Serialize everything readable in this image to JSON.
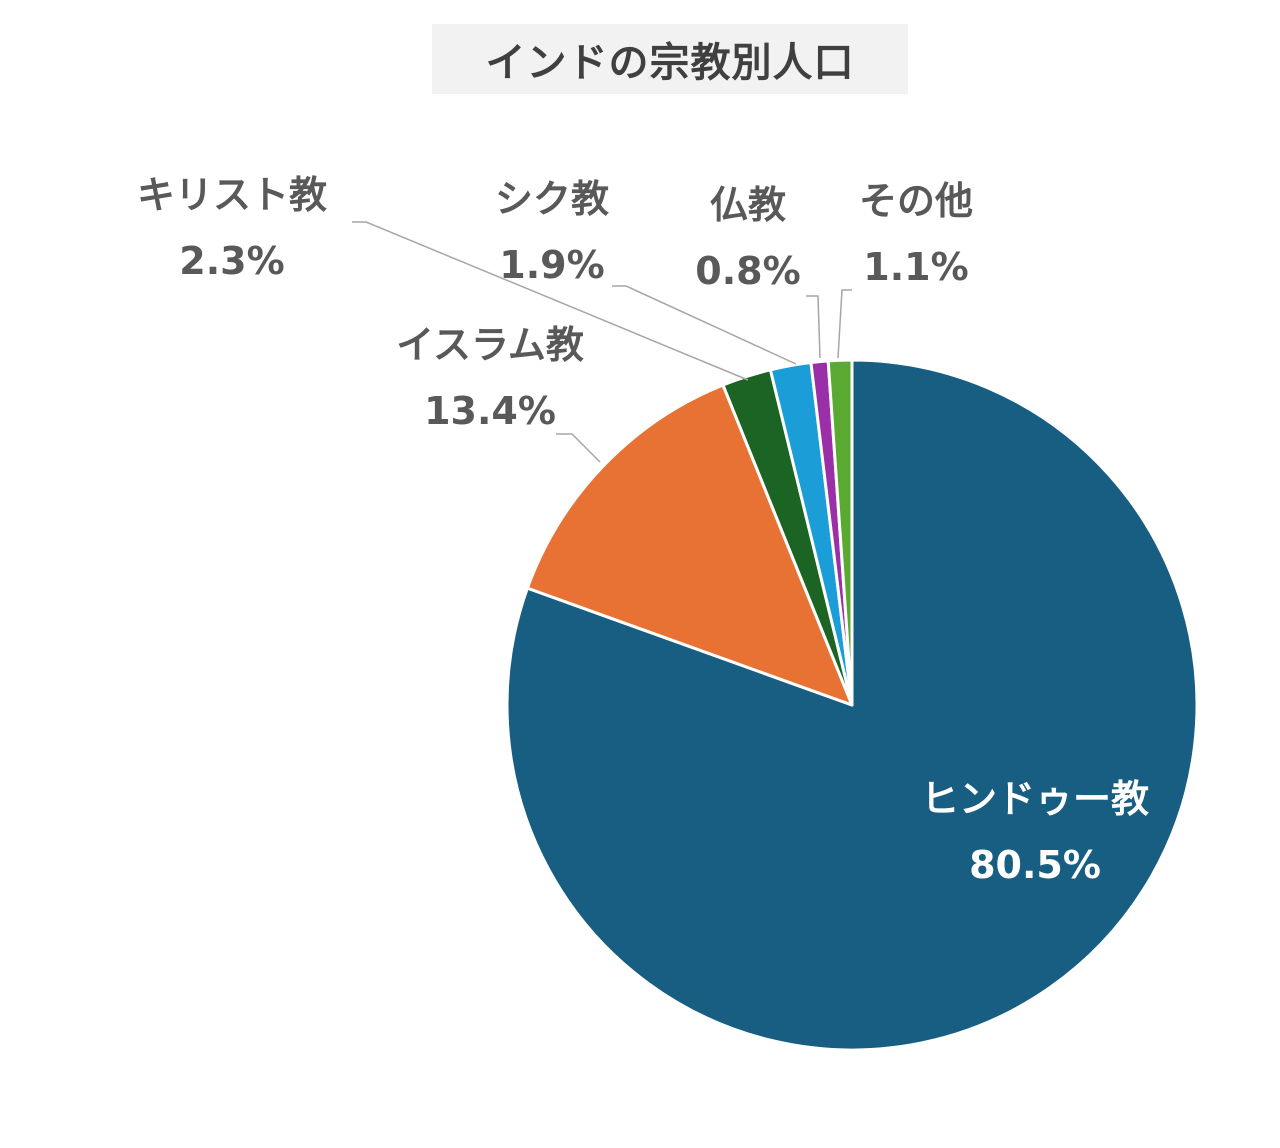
{
  "chart_data": {
    "type": "pie",
    "title": "インドの宗教別人口",
    "slices": [
      {
        "label": "ヒンドゥー教",
        "value": 80.5,
        "value_label": "80.5%",
        "color": "#175e82",
        "label_color": "#ffffff"
      },
      {
        "label": "イスラム教",
        "value": 13.4,
        "value_label": "13.4%",
        "color": "#e87234",
        "label_color": "#595959"
      },
      {
        "label": "キリスト教",
        "value": 2.3,
        "value_label": "2.3%",
        "color": "#1b6423",
        "label_color": "#595959"
      },
      {
        "label": "シク教",
        "value": 1.9,
        "value_label": "1.9%",
        "color": "#1b9ed8",
        "label_color": "#595959"
      },
      {
        "label": "仏教",
        "value": 0.8,
        "value_label": "0.8%",
        "color": "#9a2fa8",
        "label_color": "#595959"
      },
      {
        "label": "その他",
        "value": 1.1,
        "value_label": "1.1%",
        "color": "#5aaa32",
        "label_color": "#595959"
      }
    ],
    "start_angle": "12 o'clock",
    "direction": "clockwise",
    "legend": "none"
  }
}
